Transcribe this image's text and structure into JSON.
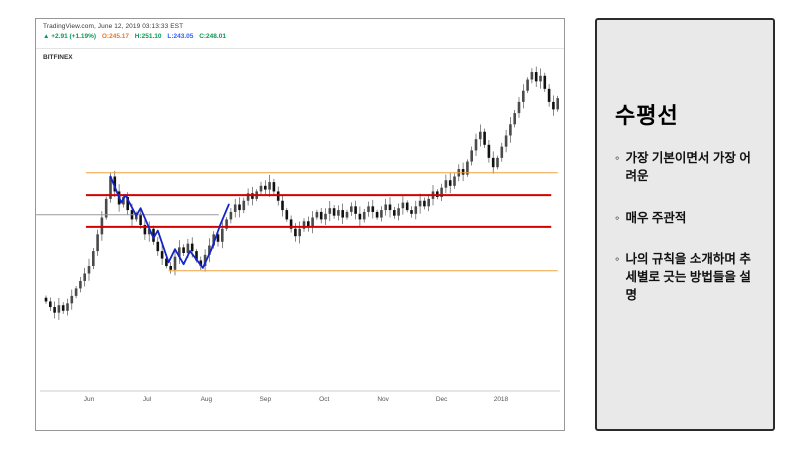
{
  "chart_panel": {
    "watermark": "TradingView.com, June 12, 2019 03:13:33 EST",
    "exchange": "BITFINEX",
    "quote": {
      "change": "▲ +2.91 (+1.19%)",
      "open": "O:245.17",
      "high": "H:251.10",
      "low": "L:243.05",
      "close": "C:248.01",
      "change_color": "#089950",
      "open_color": "#e8762c",
      "high_color": "#089950",
      "low_color": "#2962ff",
      "close_color": "#089950"
    }
  },
  "chart_data": {
    "type": "candlestick",
    "title": "",
    "xlabel": "",
    "ylabel": "",
    "ylim": [
      151,
      329
    ],
    "grid": false,
    "x_axis": {
      "labels": [
        {
          "label": "Jun",
          "i": 10
        },
        {
          "label": "Jul",
          "i": 23.5
        },
        {
          "label": "Aug",
          "i": 37.3
        },
        {
          "label": "Sep",
          "i": 51
        },
        {
          "label": "Oct",
          "i": 64.7
        },
        {
          "label": "Nov",
          "i": 78.4
        },
        {
          "label": "Dec",
          "i": 92
        },
        {
          "label": "2018",
          "i": 105.8
        }
      ],
      "color": "#555555"
    },
    "candles": {
      "first_open": 201,
      "closes": [
        199,
        196,
        193,
        197,
        194,
        198,
        202,
        206,
        210,
        214,
        218,
        226,
        235,
        244,
        254,
        266,
        258,
        251,
        255,
        248,
        243,
        246,
        240,
        235,
        238,
        231,
        226,
        222,
        218,
        216,
        223,
        228,
        225,
        230,
        226,
        221,
        218,
        224,
        229,
        235,
        231,
        238,
        243,
        247,
        251,
        248,
        253,
        257,
        254,
        258,
        261,
        259,
        263,
        258,
        253,
        248,
        243,
        238,
        234,
        238,
        242,
        239,
        244,
        247,
        243,
        246,
        249,
        245,
        248,
        244,
        247,
        250,
        246,
        243,
        247,
        250,
        247,
        244,
        248,
        251,
        248,
        245,
        249,
        252,
        248,
        246,
        250,
        253,
        250,
        254,
        258,
        255,
        260,
        264,
        261,
        266,
        270,
        267,
        274,
        280,
        286,
        290,
        283,
        276,
        271,
        276,
        282,
        288,
        294,
        300,
        306,
        312,
        318,
        322,
        317,
        320,
        313,
        306,
        302,
        308
      ],
      "up_color": "#4a4a4a",
      "down_color": "#111111",
      "wick_color": "#3a3a3a"
    },
    "hlines": [
      {
        "name": "upper-orange-resistance",
        "price": 268,
        "i1": 9.3,
        "i2": 119,
        "color": "#f0a23c",
        "width": 1
      },
      {
        "name": "upper-red-level",
        "price": 256,
        "i1": 9.3,
        "i2": 117.5,
        "color": "#d40000",
        "width": 2
      },
      {
        "name": "gray-level",
        "price": 245.5,
        "i1": -2.3,
        "i2": 40.2,
        "color": "#9a9a9a",
        "width": 1
      },
      {
        "name": "lower-red-level",
        "price": 239,
        "i1": 9.3,
        "i2": 117.5,
        "color": "#d40000",
        "width": 2
      },
      {
        "name": "lower-orange-support",
        "price": 215.5,
        "i1": 28.5,
        "i2": 119,
        "color": "#f0a23c",
        "width": 1
      }
    ],
    "trend_line": {
      "name": "blue-zigzag-drawing",
      "color": "#1525cc",
      "points": [
        [
          15,
          266
        ],
        [
          17.5,
          252
        ],
        [
          18.5,
          256
        ],
        [
          21,
          245
        ],
        [
          22,
          249
        ],
        [
          25,
          233
        ],
        [
          26,
          237
        ],
        [
          28.5,
          220
        ],
        [
          30,
          227
        ],
        [
          32,
          219
        ],
        [
          33.5,
          226
        ],
        [
          36.5,
          217
        ],
        [
          38.5,
          227
        ],
        [
          40.5,
          240
        ],
        [
          42.5,
          251
        ]
      ]
    }
  },
  "note_panel": {
    "title": "수평선",
    "bullet_marker": "◦",
    "bullets": [
      "가장 기본이면서 가장 어려운",
      "매우 주관적",
      "나의 규칙을 소개하며 추세별로 긋는 방법들을 설명"
    ]
  }
}
